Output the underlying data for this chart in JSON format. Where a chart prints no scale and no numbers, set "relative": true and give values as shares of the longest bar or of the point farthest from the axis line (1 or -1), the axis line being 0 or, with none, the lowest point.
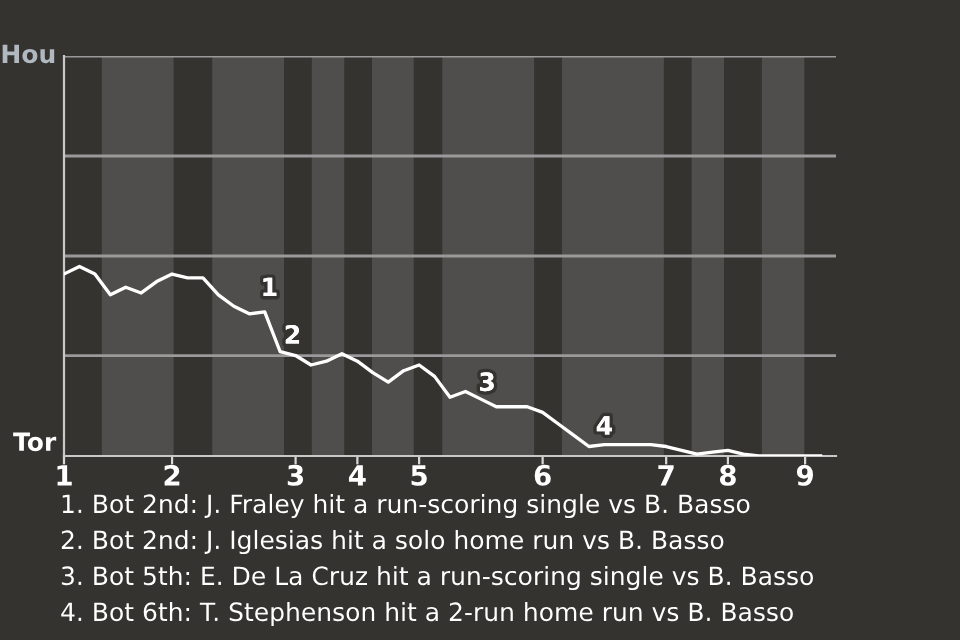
{
  "chart_data": {
    "type": "line",
    "relative": true,
    "categories": [
      "1",
      null,
      null,
      null,
      null,
      null,
      null,
      "2",
      null,
      null,
      null,
      null,
      null,
      null,
      null,
      "3",
      null,
      null,
      null,
      "4",
      null,
      null,
      null,
      "5",
      null,
      null,
      null,
      null,
      null,
      null,
      null,
      "6",
      null,
      null,
      null,
      null,
      null,
      null,
      null,
      "7",
      null,
      null,
      null,
      "8",
      null,
      null,
      null,
      null,
      "9",
      null
    ],
    "marker": "none",
    "ref_lines": [
      {
        "axis": "y",
        "value": 0.53,
        "color": "#9a9a9a"
      }
    ],
    "line_style": "solid",
    "series": [
      {
        "color": "#ffffff",
        "values": [
          0.96,
          1,
          0.96,
          0.85,
          0.89,
          0.86,
          0.92,
          0.96,
          0.94,
          0.94,
          0.85,
          0.79,
          0.75,
          0.76,
          0.55,
          0.53,
          0.48,
          0.5,
          0.54,
          0.5,
          0.44,
          0.39,
          0.45,
          0.48,
          0.42,
          0.31,
          0.34,
          0.3,
          0.26,
          0.26,
          0.26,
          0.23,
          0.17,
          0.11,
          0.05,
          0.06,
          0.06,
          0.06,
          0.06,
          0.05,
          0.03,
          0.01,
          0.02,
          0.03,
          0.01,
          0,
          0,
          0,
          0,
          0
        ]
      }
    ],
    "annotations": [
      "Hou",
      "Tor",
      "1",
      "2",
      "3",
      "4",
      "1. Bot 2nd: J. Fraley hit a run-scoring single vs B. Basso",
      "2. Bot 2nd: J. Iglesias hit a solo home run vs B. Basso",
      "3. Bot 5th: E. De La Cruz hit a run-scoring single vs B. Basso",
      "4. Bot 6th: T. Stephenson hit a 2-run home run vs B. Basso"
    ]
  }
}
